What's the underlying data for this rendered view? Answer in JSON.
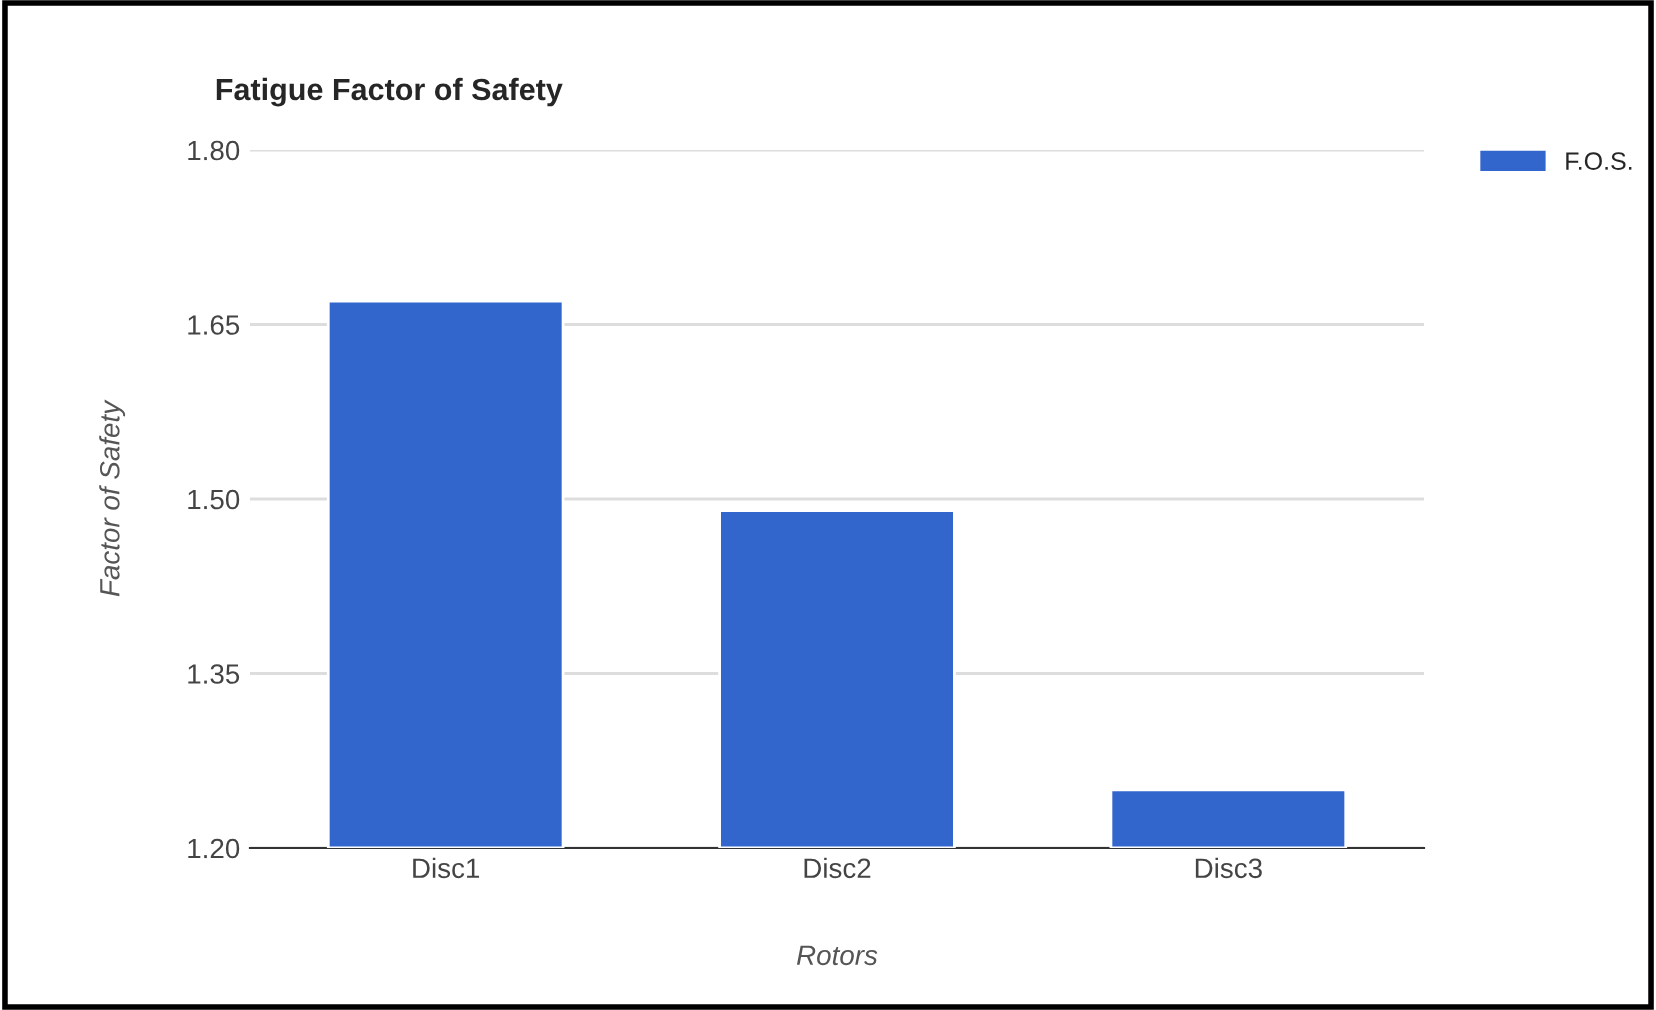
{
  "chart_data": {
    "type": "bar",
    "title": "Fatigue Factor of Safety",
    "xlabel": "Rotors",
    "ylabel": "Factor of Safety",
    "categories": [
      "Disc1",
      "Disc2",
      "Disc3"
    ],
    "series": [
      {
        "name": "F.O.S.",
        "color": "#3366cc",
        "values": [
          1.67,
          1.49,
          1.25
        ]
      }
    ],
    "ylim": [
      1.2,
      1.8
    ],
    "yticks": [
      {
        "value": 1.2,
        "label": "1.20"
      },
      {
        "value": 1.35,
        "label": "1.35"
      },
      {
        "value": 1.5,
        "label": "1.50"
      },
      {
        "value": 1.65,
        "label": "1.65"
      },
      {
        "value": 1.8,
        "label": "1.80"
      }
    ],
    "grid": "y",
    "legend": "top right"
  }
}
